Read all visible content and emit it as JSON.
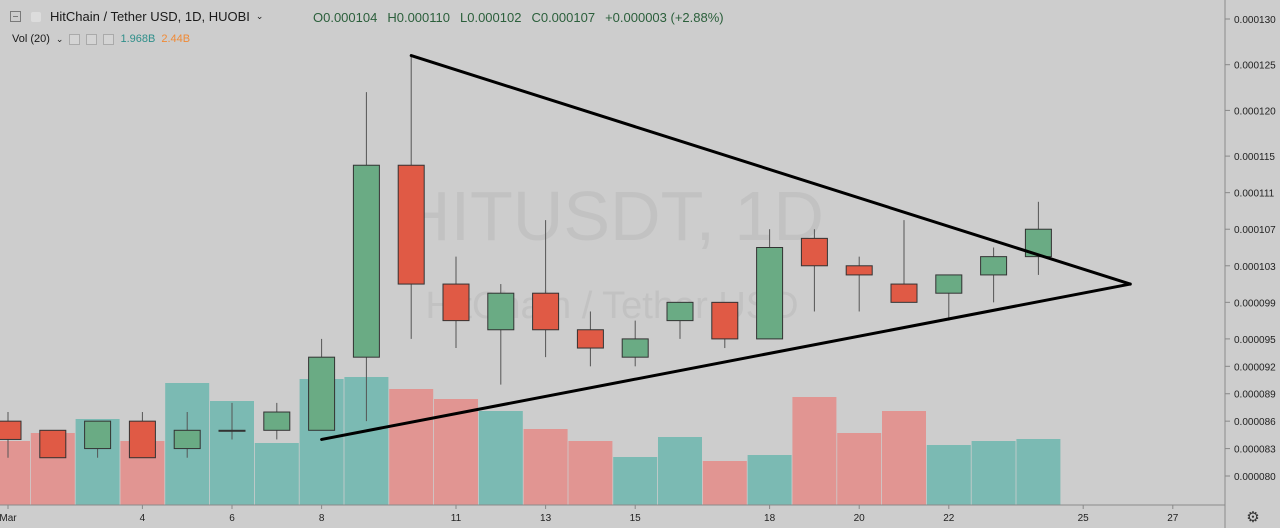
{
  "header": {
    "symbol_title": "HitChain / Tether USD, 1D, HUOBI",
    "open": "O0.000104",
    "high": "H0.000110",
    "low": "L0.000102",
    "close": "C0.000107",
    "change": "+0.000003 (+2.88%)",
    "volume_label": "Vol (20)",
    "volume_value_1": "1.968B",
    "volume_value_2": "2.44B"
  },
  "watermark": {
    "ticker": "HITUSDT, 1D",
    "name": "HitChain / Tether USD"
  },
  "colors": {
    "up": "#6aab84",
    "down": "#e05a45",
    "vol_up": "#7bbab3",
    "vol_down": "#e19592",
    "background": "#cdcdcd"
  },
  "chart_data": {
    "type": "candlestick",
    "y_axis_ticks": [
      "0.000080",
      "0.000083",
      "0.000086",
      "0.000089",
      "0.000092",
      "0.000095",
      "0.000099",
      "0.000103",
      "0.000107",
      "0.000111",
      "0.000115",
      "0.000120",
      "0.000125",
      "0.000130"
    ],
    "x_axis_ticks": [
      {
        "label": "Mar",
        "day": 1
      },
      {
        "label": "4",
        "day": 4
      },
      {
        "label": "6",
        "day": 6
      },
      {
        "label": "8",
        "day": 8
      },
      {
        "label": "11",
        "day": 11
      },
      {
        "label": "13",
        "day": 13
      },
      {
        "label": "15",
        "day": 15
      },
      {
        "label": "18",
        "day": 18
      },
      {
        "label": "20",
        "day": 20
      },
      {
        "label": "22",
        "day": 22
      },
      {
        "label": "25",
        "day": 25
      },
      {
        "label": "27",
        "day": 27
      }
    ],
    "candles": [
      {
        "day": 1,
        "o": 8.6e-05,
        "h": 8.7e-05,
        "l": 8.2e-05,
        "c": 8.4e-05,
        "vol": "down",
        "v": 0.32
      },
      {
        "day": 2,
        "o": 8.5e-05,
        "h": 8.5e-05,
        "l": 8.2e-05,
        "c": 8.2e-05,
        "vol": "down",
        "v": 0.36
      },
      {
        "day": 3,
        "o": 8.3e-05,
        "h": 8.6e-05,
        "l": 8.2e-05,
        "c": 8.6e-05,
        "vol": "up",
        "v": 0.43
      },
      {
        "day": 4,
        "o": 8.6e-05,
        "h": 8.7e-05,
        "l": 8.2e-05,
        "c": 8.2e-05,
        "vol": "down",
        "v": 0.32
      },
      {
        "day": 5,
        "o": 8.3e-05,
        "h": 8.7e-05,
        "l": 8.2e-05,
        "c": 8.5e-05,
        "vol": "up",
        "v": 0.61
      },
      {
        "day": 6,
        "o": 8.5e-05,
        "h": 8.8e-05,
        "l": 8.4e-05,
        "c": 8.5e-05,
        "vol": "up",
        "v": 0.52
      },
      {
        "day": 7,
        "o": 8.5e-05,
        "h": 8.8e-05,
        "l": 8.4e-05,
        "c": 8.7e-05,
        "vol": "up",
        "v": 0.31
      },
      {
        "day": 8,
        "o": 8.5e-05,
        "h": 9.5e-05,
        "l": 8.5e-05,
        "c": 9.3e-05,
        "vol": "up",
        "v": 0.63
      },
      {
        "day": 9,
        "o": 9.3e-05,
        "h": 0.000122,
        "l": 8.6e-05,
        "c": 0.000114,
        "vol": "up",
        "v": 0.64
      },
      {
        "day": 10,
        "o": 0.000114,
        "h": 0.000126,
        "l": 9.5e-05,
        "c": 0.000101,
        "vol": "down",
        "v": 0.58
      },
      {
        "day": 11,
        "o": 0.000101,
        "h": 0.000104,
        "l": 9.4e-05,
        "c": 9.7e-05,
        "vol": "down",
        "v": 0.53
      },
      {
        "day": 12,
        "o": 9.6e-05,
        "h": 0.000101,
        "l": 9e-05,
        "c": 0.0001,
        "vol": "up",
        "v": 0.47
      },
      {
        "day": 13,
        "o": 0.0001,
        "h": 0.000108,
        "l": 9.3e-05,
        "c": 9.6e-05,
        "vol": "down",
        "v": 0.38
      },
      {
        "day": 14,
        "o": 9.6e-05,
        "h": 9.8e-05,
        "l": 9.2e-05,
        "c": 9.4e-05,
        "vol": "down",
        "v": 0.32
      },
      {
        "day": 15,
        "o": 9.3e-05,
        "h": 9.7e-05,
        "l": 9.2e-05,
        "c": 9.5e-05,
        "vol": "up",
        "v": 0.24
      },
      {
        "day": 16,
        "o": 9.7e-05,
        "h": 9.9e-05,
        "l": 9.5e-05,
        "c": 9.9e-05,
        "vol": "up",
        "v": 0.34
      },
      {
        "day": 17,
        "o": 9.9e-05,
        "h": 9.9e-05,
        "l": 9.4e-05,
        "c": 9.5e-05,
        "vol": "down",
        "v": 0.22
      },
      {
        "day": 18,
        "o": 9.5e-05,
        "h": 0.000107,
        "l": 9.5e-05,
        "c": 0.000105,
        "vol": "up",
        "v": 0.25
      },
      {
        "day": 19,
        "o": 0.000106,
        "h": 0.000107,
        "l": 9.8e-05,
        "c": 0.000103,
        "vol": "down",
        "v": 0.54
      },
      {
        "day": 20,
        "o": 0.000103,
        "h": 0.000104,
        "l": 9.8e-05,
        "c": 0.000102,
        "vol": "down",
        "v": 0.36
      },
      {
        "day": 21,
        "o": 0.000101,
        "h": 0.000108,
        "l": 9.9e-05,
        "c": 9.9e-05,
        "vol": "down",
        "v": 0.47
      },
      {
        "day": 22,
        "o": 0.0001,
        "h": 0.000102,
        "l": 9.7e-05,
        "c": 0.000102,
        "vol": "up",
        "v": 0.3
      },
      {
        "day": 23,
        "o": 0.000102,
        "h": 0.000105,
        "l": 9.9e-05,
        "c": 0.000104,
        "vol": "up",
        "v": 0.32
      },
      {
        "day": 24,
        "o": 0.000104,
        "h": 0.00011,
        "l": 0.000102,
        "c": 0.000107,
        "vol": "up",
        "v": 0.33
      }
    ],
    "trendlines": [
      {
        "from": {
          "day": 10,
          "price": 0.000126
        },
        "to": {
          "day": 26.05,
          "price": 0.000101
        }
      },
      {
        "from": {
          "day": 8,
          "price": 8.4e-05
        },
        "to": {
          "day": 26.05,
          "price": 0.000101
        }
      }
    ]
  }
}
